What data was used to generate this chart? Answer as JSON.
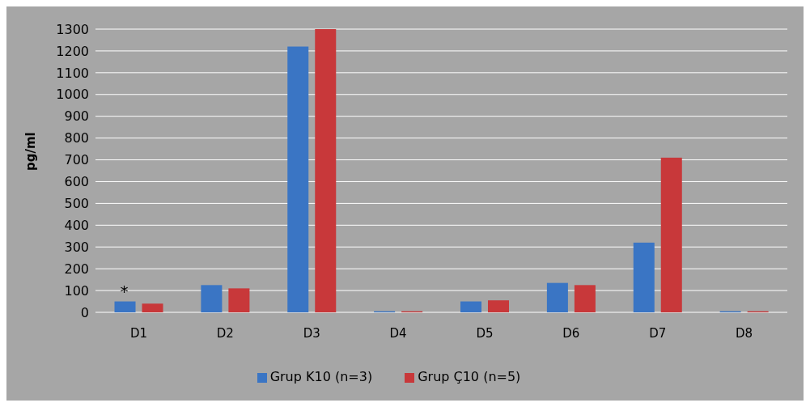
{
  "chart_data": {
    "type": "bar",
    "ylabel": "pg/ml",
    "categories": [
      "D1",
      "D2",
      "D3",
      "D4",
      "D5",
      "D6",
      "D7",
      "D8"
    ],
    "series": [
      {
        "name": "Grup K10 (n=3)",
        "color": "#3a75c4",
        "values": [
          50,
          125,
          1220,
          5,
          50,
          135,
          320,
          5
        ]
      },
      {
        "name": "Grup Ç10 (n=5)",
        "color": "#c8383a",
        "values": [
          40,
          110,
          1300,
          5,
          55,
          125,
          710,
          5
        ]
      }
    ],
    "ylim": [
      0,
      1300
    ],
    "yticks": [
      0,
      100,
      200,
      300,
      400,
      500,
      600,
      700,
      800,
      900,
      1000,
      1100,
      1200,
      1300
    ],
    "grid": "y",
    "legend": "bottom",
    "annotations": [
      {
        "text": "*",
        "x": "D1",
        "y": 50
      }
    ]
  }
}
